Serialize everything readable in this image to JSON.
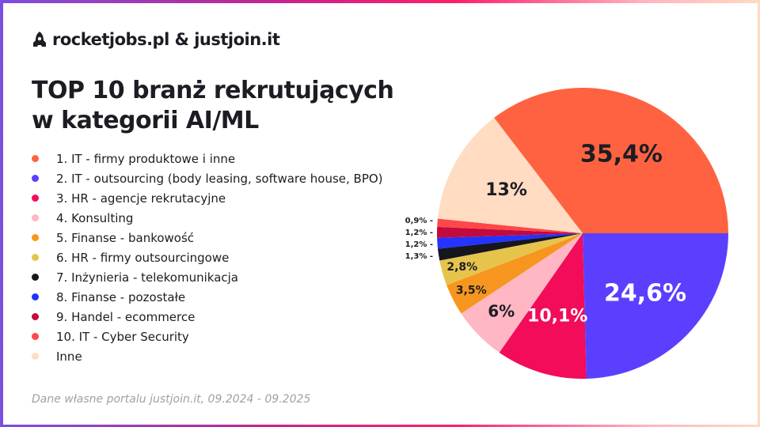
{
  "brand": {
    "text": "rocketjobs.pl & justjoin.it",
    "icon": "rocket-icon"
  },
  "title_line1": "TOP 10 branż rekrutujących",
  "title_line2": "w kategorii AI/ML",
  "source": "Dane własne portalu justjoin.it, 09.2024 - 09.2025",
  "chart_data": {
    "type": "pie",
    "title": "TOP 10 branż rekrutujących w kategorii AI/ML",
    "legend_placement": "left",
    "slices": [
      {
        "name": "1. IT - firmy produktowe i inne",
        "value": 35.4,
        "label": "35,4%",
        "color": "#FF6240"
      },
      {
        "name": "2. IT - outsourcing (body leasing, software house, BPO)",
        "value": 24.6,
        "label": "24,6%",
        "color": "#5B3FFF"
      },
      {
        "name": "3. HR - agencje rekrutacyjne",
        "value": 10.1,
        "label": "10,1%",
        "color": "#F20C5A"
      },
      {
        "name": "4. Konsulting",
        "value": 6,
        "label": "6%",
        "color": "#FFB7C3"
      },
      {
        "name": "5. Finanse - bankowość",
        "value": 3.5,
        "label": "3,5%",
        "color": "#F7961E"
      },
      {
        "name": "6. HR - firmy outsourcingowe",
        "value": 2.8,
        "label": "2,8%",
        "color": "#E6C44C"
      },
      {
        "name": "7. Inżynieria - telekomunikacja",
        "value": 1.3,
        "label": "1,3%",
        "color": "#16161E"
      },
      {
        "name": "8. Finanse - pozostałe",
        "value": 1.2,
        "label": "1,2%",
        "color": "#2433FF"
      },
      {
        "name": "9. Handel - ecommerce",
        "value": 1.2,
        "label": "1,2%",
        "color": "#C10A3E"
      },
      {
        "name": "10. IT - Cyber Security",
        "value": 0.9,
        "label": "0,9%",
        "color": "#FF4747"
      },
      {
        "name": "Inne",
        "value": 13,
        "label": "13%",
        "color": "#FFDCC2"
      }
    ]
  }
}
